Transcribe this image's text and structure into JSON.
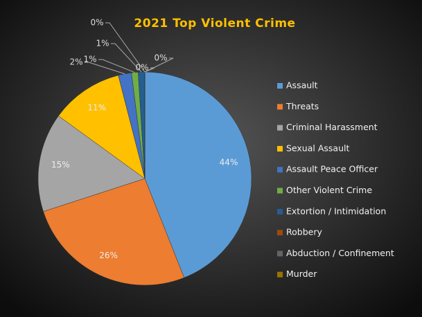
{
  "chart_data": {
    "type": "pie",
    "title": "2021 Top Violent Crime",
    "categories": [
      "Assault",
      "Threats",
      "Criminal Harassment",
      "Sexual Assault",
      "Assault Peace Officer",
      "Other Violent Crime",
      "Extortion / Intimidation",
      "Robbery",
      "Abduction / Confinement",
      "Murder"
    ],
    "values": [
      44,
      26,
      15,
      11,
      2,
      1,
      1,
      0,
      0,
      0
    ],
    "value_labels": [
      "44%",
      "26%",
      "15%",
      "11%",
      "2%",
      "1%",
      "1%",
      "0%",
      "0%",
      "0%"
    ],
    "colors": [
      "#5b9bd5",
      "#ed7d31",
      "#a5a5a5",
      "#ffc000",
      "#4472c4",
      "#70ad47",
      "#255e91",
      "#9e480e",
      "#636363",
      "#997300"
    ],
    "legend": "right"
  }
}
